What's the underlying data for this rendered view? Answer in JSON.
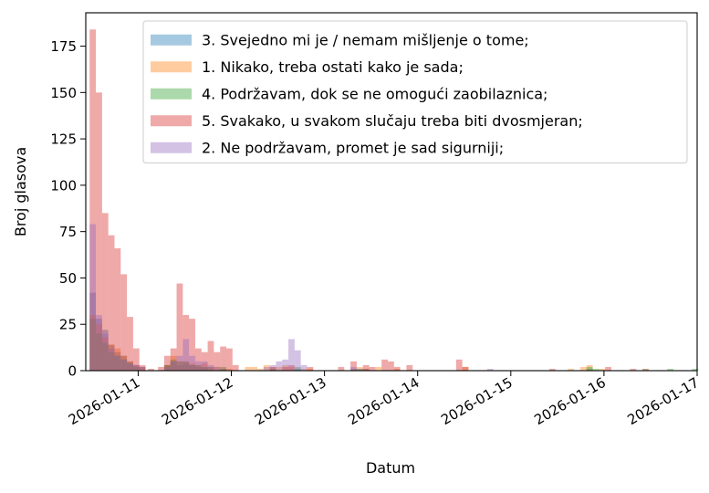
{
  "chart_data": {
    "type": "bar",
    "subtype": "overlaid-histogram",
    "title": "",
    "xlabel": "Datum",
    "ylabel": "Broj glasova",
    "ylim": [
      0,
      193
    ],
    "xlim": [
      "2026-01-10T10:30",
      "2026-01-17T00:00"
    ],
    "bin_hours": 1.6,
    "x_ticks": [
      "2026-01-11",
      "2026-01-12",
      "2026-01-13",
      "2026-01-14",
      "2026-01-15",
      "2026-01-16",
      "2026-01-17"
    ],
    "y_ticks": [
      0,
      25,
      50,
      75,
      100,
      125,
      150,
      175
    ],
    "grid": false,
    "legend_position": "top-right",
    "alpha": 0.4,
    "series": [
      {
        "name": "3. Svejedno mi je / nemam mišljenje o tome;",
        "color": "#1f77b4",
        "bins": [
          [
            "2026-01-10T11:30",
            42
          ],
          [
            "2026-01-10T13:06",
            28
          ],
          [
            "2026-01-10T14:42",
            22
          ],
          [
            "2026-01-10T16:18",
            14
          ],
          [
            "2026-01-10T17:54",
            10
          ],
          [
            "2026-01-10T19:30",
            8
          ],
          [
            "2026-01-10T21:06",
            5
          ],
          [
            "2026-01-10T22:42",
            3
          ],
          [
            "2026-01-11T00:18",
            2
          ],
          [
            "2026-01-11T06:42",
            3
          ],
          [
            "2026-01-11T08:18",
            5
          ],
          [
            "2026-01-11T09:54",
            3
          ],
          [
            "2026-01-11T11:30",
            4
          ],
          [
            "2026-01-11T13:06",
            3
          ],
          [
            "2026-01-11T14:42",
            2
          ],
          [
            "2026-01-11T16:18",
            2
          ],
          [
            "2026-01-11T21:06",
            1
          ],
          [
            "2026-01-12T16:18",
            1
          ],
          [
            "2026-01-13T09:54",
            1
          ],
          [
            "2026-01-15T19:30",
            1
          ],
          [
            "2026-01-16T09:54",
            1
          ]
        ]
      },
      {
        "name": "1. Nikako, treba ostati kako je sada;",
        "color": "#ff7f0e",
        "bins": [
          [
            "2026-01-10T11:30",
            30
          ],
          [
            "2026-01-10T13:06",
            25
          ],
          [
            "2026-01-10T14:42",
            18
          ],
          [
            "2026-01-10T16:18",
            14
          ],
          [
            "2026-01-10T17:54",
            12
          ],
          [
            "2026-01-10T19:30",
            8
          ],
          [
            "2026-01-10T21:06",
            5
          ],
          [
            "2026-01-10T22:42",
            3
          ],
          [
            "2026-01-11T00:18",
            2
          ],
          [
            "2026-01-11T06:42",
            3
          ],
          [
            "2026-01-11T08:18",
            8
          ],
          [
            "2026-01-11T09:54",
            5
          ],
          [
            "2026-01-11T11:30",
            5
          ],
          [
            "2026-01-11T13:06",
            4
          ],
          [
            "2026-01-11T14:42",
            3
          ],
          [
            "2026-01-11T16:18",
            4
          ],
          [
            "2026-01-11T17:54",
            2
          ],
          [
            "2026-01-11T19:30",
            2
          ],
          [
            "2026-01-11T22:42",
            1
          ],
          [
            "2026-01-12T03:30",
            2
          ],
          [
            "2026-01-12T05:06",
            2
          ],
          [
            "2026-01-12T06:42",
            1
          ],
          [
            "2026-01-12T08:18",
            3
          ],
          [
            "2026-01-12T09:54",
            2
          ],
          [
            "2026-01-12T11:30",
            2
          ],
          [
            "2026-01-12T13:06",
            3
          ],
          [
            "2026-01-12T14:42",
            2
          ],
          [
            "2026-01-12T17:54",
            1
          ],
          [
            "2026-01-12T19:30",
            1
          ],
          [
            "2026-01-13T08:18",
            2
          ],
          [
            "2026-01-13T09:54",
            1
          ],
          [
            "2026-01-13T13:06",
            2
          ],
          [
            "2026-01-13T17:54",
            1
          ],
          [
            "2026-01-14T11:30",
            2
          ],
          [
            "2026-01-15T14:42",
            1
          ],
          [
            "2026-01-15T17:54",
            2
          ],
          [
            "2026-01-15T19:30",
            3
          ],
          [
            "2026-01-15T22:42",
            1
          ],
          [
            "2026-01-16T09:54",
            1
          ]
        ]
      },
      {
        "name": "4. Podržavam, dok se ne omogući zaobilaznica;",
        "color": "#2ca02c",
        "bins": [
          [
            "2026-01-10T11:30",
            28
          ],
          [
            "2026-01-10T13:06",
            20
          ],
          [
            "2026-01-10T14:42",
            15
          ],
          [
            "2026-01-10T16:18",
            10
          ],
          [
            "2026-01-10T17:54",
            8
          ],
          [
            "2026-01-10T19:30",
            6
          ],
          [
            "2026-01-10T21:06",
            4
          ],
          [
            "2026-01-10T22:42",
            2
          ],
          [
            "2026-01-11T06:42",
            3
          ],
          [
            "2026-01-11T08:18",
            6
          ],
          [
            "2026-01-11T09:54",
            5
          ],
          [
            "2026-01-11T11:30",
            5
          ],
          [
            "2026-01-11T13:06",
            3
          ],
          [
            "2026-01-11T14:42",
            3
          ],
          [
            "2026-01-11T16:18",
            2
          ],
          [
            "2026-01-11T17:54",
            2
          ],
          [
            "2026-01-11T21:06",
            2
          ],
          [
            "2026-01-12T09:54",
            1
          ],
          [
            "2026-01-12T16:18",
            2
          ],
          [
            "2026-01-13T06:42",
            1
          ],
          [
            "2026-01-13T08:18",
            1
          ],
          [
            "2026-01-15T19:30",
            2
          ],
          [
            "2026-01-15T21:06",
            1
          ],
          [
            "2026-01-16T16:18",
            1
          ],
          [
            "2026-01-16T22:42",
            1
          ]
        ]
      },
      {
        "name": "5. Svakako, u svakom slučaju treba biti dvosmjeran;",
        "color": "#d62728",
        "bins": [
          [
            "2026-01-10T11:30",
            184
          ],
          [
            "2026-01-10T13:06",
            150
          ],
          [
            "2026-01-10T14:42",
            85
          ],
          [
            "2026-01-10T16:18",
            73
          ],
          [
            "2026-01-10T17:54",
            66
          ],
          [
            "2026-01-10T19:30",
            52
          ],
          [
            "2026-01-10T21:06",
            29
          ],
          [
            "2026-01-10T22:42",
            12
          ],
          [
            "2026-01-11T00:18",
            3
          ],
          [
            "2026-01-11T02:30",
            1
          ],
          [
            "2026-01-11T05:06",
            2
          ],
          [
            "2026-01-11T06:42",
            8
          ],
          [
            "2026-01-11T08:18",
            12
          ],
          [
            "2026-01-11T09:54",
            47
          ],
          [
            "2026-01-11T11:30",
            30
          ],
          [
            "2026-01-11T13:06",
            28
          ],
          [
            "2026-01-11T14:42",
            12
          ],
          [
            "2026-01-11T16:18",
            10
          ],
          [
            "2026-01-11T17:54",
            16
          ],
          [
            "2026-01-11T19:30",
            10
          ],
          [
            "2026-01-11T21:06",
            13
          ],
          [
            "2026-01-11T22:42",
            12
          ],
          [
            "2026-01-12T00:18",
            3
          ],
          [
            "2026-01-12T09:54",
            2
          ],
          [
            "2026-01-12T13:06",
            2
          ],
          [
            "2026-01-12T14:42",
            3
          ],
          [
            "2026-01-12T19:30",
            2
          ],
          [
            "2026-01-13T03:30",
            2
          ],
          [
            "2026-01-13T06:42",
            5
          ],
          [
            "2026-01-13T09:54",
            3
          ],
          [
            "2026-01-13T11:30",
            2
          ],
          [
            "2026-01-13T14:42",
            6
          ],
          [
            "2026-01-13T16:18",
            5
          ],
          [
            "2026-01-13T17:54",
            2
          ],
          [
            "2026-01-13T21:06",
            3
          ],
          [
            "2026-01-14T09:54",
            6
          ],
          [
            "2026-01-14T11:30",
            2
          ],
          [
            "2026-01-15T09:54",
            1
          ],
          [
            "2026-01-16T00:18",
            2
          ],
          [
            "2026-01-16T06:42",
            1
          ]
        ]
      },
      {
        "name": "2. Ne podržavam, promet je sad sigurniji;",
        "color": "#9467bd",
        "bins": [
          [
            "2026-01-10T11:30",
            79
          ],
          [
            "2026-01-10T13:06",
            30
          ],
          [
            "2026-01-10T14:42",
            20
          ],
          [
            "2026-01-10T16:18",
            12
          ],
          [
            "2026-01-10T17:54",
            8
          ],
          [
            "2026-01-10T19:30",
            6
          ],
          [
            "2026-01-10T21:06",
            4
          ],
          [
            "2026-01-10T22:42",
            3
          ],
          [
            "2026-01-11T00:18",
            2
          ],
          [
            "2026-01-11T06:42",
            2
          ],
          [
            "2026-01-11T08:18",
            5
          ],
          [
            "2026-01-11T09:54",
            8
          ],
          [
            "2026-01-11T11:30",
            17
          ],
          [
            "2026-01-11T13:06",
            8
          ],
          [
            "2026-01-11T14:42",
            5
          ],
          [
            "2026-01-11T16:18",
            5
          ],
          [
            "2026-01-11T17:54",
            3
          ],
          [
            "2026-01-11T19:30",
            2
          ],
          [
            "2026-01-12T08:18",
            2
          ],
          [
            "2026-01-12T09:54",
            3
          ],
          [
            "2026-01-12T11:30",
            5
          ],
          [
            "2026-01-12T13:06",
            6
          ],
          [
            "2026-01-12T14:42",
            17
          ],
          [
            "2026-01-12T16:18",
            11
          ],
          [
            "2026-01-12T17:54",
            3
          ],
          [
            "2026-01-13T06:42",
            2
          ],
          [
            "2026-01-13T08:18",
            1
          ],
          [
            "2026-01-14T17:54",
            1
          ]
        ]
      }
    ]
  }
}
